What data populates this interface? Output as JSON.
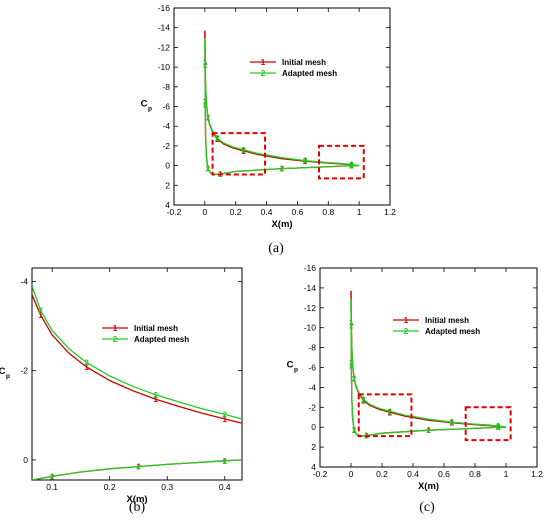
{
  "charts": [
    {
      "id": "a",
      "caption": "(a)",
      "xlabel": "X(m)",
      "ylabel_main": "C",
      "ylabel_sub": "p",
      "xlim": [
        -0.2,
        1.2
      ],
      "ylim": [
        4,
        -16
      ],
      "xticks": [
        "-0.2",
        "0",
        "0.2",
        "0.4",
        "0.6",
        "0.8",
        "1",
        "1.2"
      ],
      "xtick_values": [
        -0.2,
        0,
        0.2,
        0.4,
        0.6,
        0.8,
        1,
        1.2
      ],
      "yticks": [
        "-16",
        "-14",
        "-12",
        "-10",
        "-8",
        "-6",
        "-4",
        "-2",
        "0",
        "2",
        "4"
      ],
      "ytick_values": [
        -16,
        -14,
        -12,
        -10,
        -8,
        -6,
        -4,
        -2,
        0,
        2,
        4
      ],
      "legend": [
        {
          "marker": "1",
          "label": "Initial mesh",
          "color": "#cc0000"
        },
        {
          "marker": "2",
          "label": "Adapted mesh",
          "color": "#22cc22"
        }
      ],
      "zoom_boxes": [
        {
          "x0": 0.05,
          "x1": 0.39,
          "y0": -3.3,
          "y1": 0.9
        },
        {
          "x0": 0.74,
          "x1": 1.03,
          "y0": -2.0,
          "y1": 1.3
        }
      ]
    },
    {
      "id": "b",
      "caption": "(b)",
      "xlabel": "X(m)",
      "ylabel_main": "C",
      "ylabel_sub": "p",
      "xlim": [
        0.065,
        0.43
      ],
      "ylim": [
        0.45,
        -4.3
      ],
      "xticks": [
        "0.1",
        "0.2",
        "0.3",
        "0.4"
      ],
      "xtick_values": [
        0.1,
        0.2,
        0.3,
        0.4
      ],
      "yticks": [
        "-4",
        "-2",
        "0"
      ],
      "ytick_values": [
        -4,
        -2,
        0
      ],
      "legend": [
        {
          "marker": "1",
          "label": "Initial mesh",
          "color": "#cc0000"
        },
        {
          "marker": "2",
          "label": "Adapted mesh",
          "color": "#22cc22"
        }
      ],
      "zoom_boxes": []
    },
    {
      "id": "c",
      "caption": "(c)",
      "xlabel": "X(m)",
      "ylabel_main": "C",
      "ylabel_sub": "p",
      "xlim": [
        -0.2,
        1.2
      ],
      "ylim": [
        4,
        -16
      ],
      "xticks": [
        "-0.2",
        "0",
        "0.2",
        "0.4",
        "0.6",
        "0.8",
        "1",
        "1.2"
      ],
      "xtick_values": [
        -0.2,
        0,
        0.2,
        0.4,
        0.6,
        0.8,
        1,
        1.2
      ],
      "yticks": [
        "-16",
        "-14",
        "-12",
        "-10",
        "-8",
        "-6",
        "-4",
        "-2",
        "0",
        "2",
        "4"
      ],
      "ytick_values": [
        -16,
        -14,
        -12,
        -10,
        -8,
        -6,
        -4,
        -2,
        0,
        2,
        4
      ],
      "legend": [
        {
          "marker": "1",
          "label": "Initial mesh",
          "color": "#cc0000"
        },
        {
          "marker": "2",
          "label": "Adapted mesh",
          "color": "#22cc22"
        }
      ],
      "zoom_boxes": [
        {
          "x0": 0.05,
          "x1": 0.39,
          "y0": -3.3,
          "y1": 0.9
        },
        {
          "x0": 0.74,
          "x1": 1.03,
          "y0": -2.0,
          "y1": 1.3
        }
      ]
    }
  ],
  "chart_data": [
    {
      "type": "line",
      "panel": "a",
      "xlabel": "X(m)",
      "ylabel": "Cp",
      "xlim": [
        -0.2,
        1.2
      ],
      "ylim": [
        4,
        -16
      ],
      "y_axis_inverted": true,
      "grid": false,
      "legend_position": "top-right",
      "series": [
        {
          "name": "Initial mesh",
          "upper": {
            "x": [
              0,
              0.002,
              0.005,
              0.01,
              0.02,
              0.03,
              0.05,
              0.08,
              0.12,
              0.18,
              0.25,
              0.35,
              0.5,
              0.65,
              0.8,
              0.9,
              0.95,
              1.0
            ],
            "y": [
              -13.7,
              -10.5,
              -8.2,
              -6.4,
              -4.9,
              -4.2,
              -3.4,
              -2.7,
              -2.2,
              -1.8,
              -1.5,
              -1.1,
              -0.7,
              -0.45,
              -0.25,
              -0.15,
              -0.1,
              0
            ]
          },
          "lower": {
            "x": [
              0,
              0.002,
              0.005,
              0.01,
              0.02,
              0.04,
              0.06,
              0.1,
              0.2,
              0.3,
              0.5,
              0.7,
              0.85,
              0.95,
              1.0
            ],
            "y": [
              -13.7,
              -6.5,
              -3.0,
              -1.0,
              0.3,
              0.8,
              0.9,
              0.85,
              0.6,
              0.5,
              0.3,
              0.18,
              0.08,
              0.0,
              0
            ]
          }
        },
        {
          "name": "Adapted mesh",
          "upper": {
            "x": [
              0,
              0.002,
              0.005,
              0.01,
              0.02,
              0.03,
              0.05,
              0.08,
              0.12,
              0.18,
              0.25,
              0.35,
              0.5,
              0.65,
              0.8,
              0.9,
              0.95,
              1.0
            ],
            "y": [
              -12.9,
              -10.2,
              -8.0,
              -6.3,
              -4.9,
              -4.3,
              -3.5,
              -2.8,
              -2.3,
              -1.9,
              -1.6,
              -1.2,
              -0.8,
              -0.5,
              -0.3,
              -0.2,
              -0.1,
              0
            ]
          },
          "lower": {
            "x": [
              0,
              0.002,
              0.005,
              0.01,
              0.02,
              0.04,
              0.06,
              0.1,
              0.2,
              0.3,
              0.5,
              0.7,
              0.85,
              0.95,
              1.0
            ],
            "y": [
              -12.9,
              -6.2,
              -2.9,
              -0.9,
              0.3,
              0.8,
              0.9,
              0.85,
              0.6,
              0.5,
              0.3,
              0.18,
              0.08,
              0.0,
              0
            ]
          }
        }
      ]
    },
    {
      "type": "line",
      "panel": "b",
      "xlabel": "X(m)",
      "ylabel": "Cp",
      "xlim": [
        0.065,
        0.43
      ],
      "ylim": [
        0.45,
        -4.3
      ],
      "y_axis_inverted": true,
      "grid": false,
      "legend_position": "top-right",
      "series": [
        {
          "name": "Initial mesh",
          "upper": {
            "x": [
              0.065,
              0.08,
              0.1,
              0.13,
              0.16,
              0.2,
              0.24,
              0.28,
              0.32,
              0.36,
              0.4,
              0.43
            ],
            "y": [
              -3.7,
              -3.25,
              -2.8,
              -2.38,
              -2.08,
              -1.78,
              -1.55,
              -1.36,
              -1.2,
              -1.05,
              -0.92,
              -0.82
            ]
          },
          "lower": {
            "x": [
              0.065,
              0.1,
              0.15,
              0.2,
              0.25,
              0.3,
              0.35,
              0.4,
              0.43
            ],
            "y": [
              0.45,
              0.37,
              0.27,
              0.2,
              0.15,
              0.1,
              0.06,
              0.02,
              0.0
            ]
          }
        },
        {
          "name": "Adapted mesh",
          "upper": {
            "x": [
              0.065,
              0.08,
              0.1,
              0.13,
              0.16,
              0.2,
              0.24,
              0.28,
              0.32,
              0.36,
              0.4,
              0.43
            ],
            "y": [
              -3.9,
              -3.35,
              -2.9,
              -2.48,
              -2.18,
              -1.88,
              -1.65,
              -1.46,
              -1.3,
              -1.15,
              -1.02,
              -0.92
            ]
          },
          "lower": {
            "x": [
              0.065,
              0.1,
              0.15,
              0.2,
              0.25,
              0.3,
              0.35,
              0.4,
              0.43
            ],
            "y": [
              0.45,
              0.37,
              0.27,
              0.2,
              0.15,
              0.1,
              0.06,
              0.02,
              0.0
            ]
          }
        }
      ]
    },
    {
      "type": "line",
      "panel": "c",
      "xlabel": "X(m)",
      "ylabel": "Cp",
      "xlim": [
        -0.2,
        1.2
      ],
      "ylim": [
        4,
        -16
      ],
      "y_axis_inverted": true,
      "grid": false,
      "legend_position": "top-right",
      "series": [
        {
          "name": "Initial mesh",
          "upper": {
            "x": [
              0,
              0.002,
              0.005,
              0.01,
              0.02,
              0.03,
              0.05,
              0.08,
              0.12,
              0.18,
              0.25,
              0.35,
              0.5,
              0.65,
              0.8,
              0.9,
              0.95,
              1.0
            ],
            "y": [
              -13.7,
              -10.5,
              -8.2,
              -6.4,
              -4.9,
              -4.2,
              -3.4,
              -2.7,
              -2.2,
              -1.8,
              -1.5,
              -1.1,
              -0.7,
              -0.45,
              -0.25,
              -0.15,
              -0.1,
              0
            ]
          },
          "lower": {
            "x": [
              0,
              0.002,
              0.005,
              0.01,
              0.02,
              0.04,
              0.06,
              0.1,
              0.2,
              0.3,
              0.5,
              0.7,
              0.85,
              0.95,
              1.0
            ],
            "y": [
              -13.7,
              -6.5,
              -3.0,
              -1.0,
              0.3,
              0.8,
              0.9,
              0.85,
              0.6,
              0.5,
              0.3,
              0.18,
              0.08,
              0.0,
              0
            ]
          }
        },
        {
          "name": "Adapted mesh",
          "upper": {
            "x": [
              0,
              0.002,
              0.005,
              0.01,
              0.02,
              0.03,
              0.05,
              0.08,
              0.12,
              0.18,
              0.25,
              0.35,
              0.5,
              0.65,
              0.8,
              0.9,
              0.95,
              1.0
            ],
            "y": [
              -12.9,
              -10.2,
              -8.0,
              -6.3,
              -4.9,
              -4.3,
              -3.5,
              -2.8,
              -2.3,
              -1.9,
              -1.6,
              -1.2,
              -0.8,
              -0.5,
              -0.3,
              -0.2,
              -0.1,
              0
            ]
          },
          "lower": {
            "x": [
              0,
              0.002,
              0.005,
              0.01,
              0.02,
              0.04,
              0.06,
              0.1,
              0.2,
              0.3,
              0.5,
              0.7,
              0.85,
              0.95,
              1.0
            ],
            "y": [
              -12.9,
              -6.2,
              -2.9,
              -0.9,
              0.3,
              0.8,
              0.9,
              0.85,
              0.6,
              0.5,
              0.3,
              0.18,
              0.08,
              0.0,
              0
            ]
          }
        }
      ]
    }
  ]
}
